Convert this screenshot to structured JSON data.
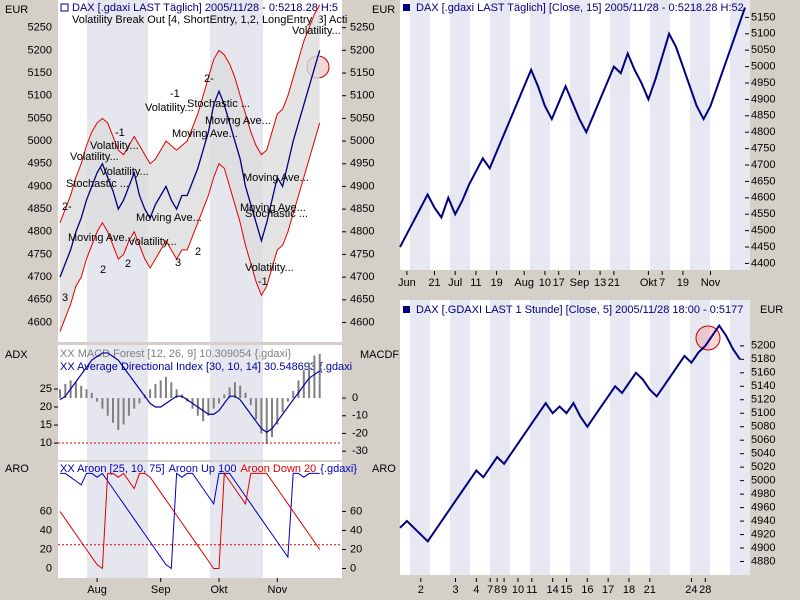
{
  "panels": [
    {
      "type": "band",
      "unit": "EUR",
      "title": "DAX [.gdaxi LAST Täglich] 2005/11/28 - 0:5218.28 H:5",
      "subtitle": "Volatility Break Out [4, ShortEntry, 1,2, LongEntry, 3] Acti",
      "categories": [
        null,
        null,
        null,
        null,
        null,
        null,
        null,
        "Aug",
        null,
        null,
        null,
        null,
        null,
        null,
        null,
        null,
        null,
        null,
        null,
        "Sep",
        null,
        null,
        null,
        null,
        null,
        null,
        null,
        null,
        null,
        null,
        "Okt",
        null,
        null,
        null,
        null,
        null,
        null,
        null,
        null,
        null,
        null,
        "Nov",
        null,
        null,
        null,
        null,
        null,
        null,
        null,
        null
      ],
      "series": [
        {
          "color": "#000080",
          "values": [
            4700,
            4730,
            4760,
            4800,
            4830,
            4870,
            4900,
            4930,
            4950,
            4920,
            4890,
            4850,
            4870,
            4900,
            4930,
            4880,
            4850,
            4830,
            4860,
            4880,
            4900,
            4870,
            4850,
            4880,
            4880,
            4910,
            4940,
            4980,
            5020,
            5080,
            5110,
            5080,
            5040,
            5000,
            4960,
            4900,
            4860,
            4820,
            4780,
            4820,
            4870,
            4920,
            4900,
            4950,
            5000,
            5040,
            5080,
            5120,
            5160,
            5200
          ]
        },
        {
          "color": "#e00000",
          "values": [
            4820,
            4850,
            4880,
            4920,
            4950,
            4990,
            5020,
            5040,
            5050,
            5040,
            5010,
            4980,
            4970,
            4990,
            5010,
            4990,
            4970,
            4950,
            4960,
            4980,
            5000,
            4990,
            4980,
            4990,
            5000,
            5030,
            5060,
            5100,
            5140,
            5180,
            5200,
            5190,
            5170,
            5140,
            5100,
            5060,
            5020,
            4990,
            4970,
            4980,
            5020,
            5060,
            5070,
            5100,
            5140,
            5180,
            5220,
            5250,
            5280,
            5300
          ]
        },
        {
          "color": "#e00000",
          "values": [
            4580,
            4610,
            4640,
            4680,
            4700,
            4740,
            4770,
            4800,
            4820,
            4800,
            4770,
            4740,
            4750,
            4780,
            4800,
            4770,
            4740,
            4720,
            4740,
            4760,
            4780,
            4760,
            4740,
            4760,
            4760,
            4790,
            4820,
            4850,
            4880,
            4920,
            4950,
            4940,
            4900,
            4860,
            4820,
            4770,
            4730,
            4690,
            4660,
            4680,
            4720,
            4760,
            4770,
            4800,
            4840,
            4880,
            4920,
            4960,
            5000,
            5040
          ]
        }
      ],
      "ylim": [
        4557,
        5311
      ],
      "yticks": [
        4600,
        4650,
        4700,
        4750,
        4800,
        4850,
        4900,
        4950,
        5000,
        5050,
        5100,
        5150,
        5200,
        5250
      ],
      "annotations": [
        "Volatility...",
        "Volatility...",
        "-1",
        "Volatility...",
        "-1",
        "2-",
        "Stochastic ...",
        "Moving Ave...",
        "Moving Ave...",
        "Volatility...",
        "-1",
        "Volatility...",
        "Stochastic ...",
        "Moving Ave...",
        "Volatility...",
        "Moving Ave...",
        "Volatility...",
        "2",
        "2",
        "3",
        "2",
        "Stochastic ...",
        "Moving Ave...",
        "Moving Ave...",
        "3",
        "2-"
      ]
    },
    {
      "type": "adx",
      "left_label": "ADX",
      "right_label": "MACDF",
      "title": "XX MACD Forest [12, 26, 9] 10.309054 {.gdaxi}",
      "subtitle": "XX Average Directional Index [30, 10, 14] 30.548693 {.gdaxi",
      "series": [
        {
          "color": "#0000a0",
          "values": [
            22,
            23,
            25,
            27,
            29,
            31,
            33,
            34,
            35,
            35,
            34,
            33,
            31,
            29,
            27,
            25,
            23,
            21,
            20,
            20,
            21,
            22,
            23,
            23,
            22,
            21,
            20,
            19,
            18,
            18,
            19,
            21,
            23,
            23,
            22,
            20,
            18,
            16,
            14,
            13,
            14,
            16,
            18,
            20,
            22,
            24,
            26,
            28,
            29,
            30
          ]
        },
        {
          "color": "#808080",
          "axis": "y2",
          "values": [
            5,
            8,
            10,
            9,
            7,
            5,
            3,
            -2,
            -6,
            -10,
            -14,
            -18,
            -15,
            -10,
            -6,
            -3,
            2,
            5,
            8,
            10,
            12,
            9,
            5,
            2,
            -2,
            -6,
            -10,
            -13,
            -10,
            -6,
            -3,
            2,
            6,
            9,
            7,
            3,
            -4,
            -12,
            -20,
            -26,
            -22,
            -15,
            -8,
            -2,
            4,
            10,
            16,
            20,
            24,
            25
          ]
        }
      ],
      "ylim": [
        5.3,
        37.2
      ],
      "yticks": [
        10,
        15,
        20,
        25
      ],
      "y2lim": [
        -35,
        30
      ],
      "y2ticks": [
        -30,
        -20,
        -10,
        0
      ],
      "levels": [
        10
      ]
    },
    {
      "type": "aroon",
      "label": "ARO",
      "title_parts": [
        {
          "text": "XX Aroon [25, 10, 75]",
          "color": "#0000c0"
        },
        {
          "text": "Aroon Up 100",
          "color": "#0000c0"
        },
        {
          "text": "Aroon Down 20",
          "color": "#e00000"
        },
        {
          "text": "{.gdaxi}",
          "color": "#0000c0"
        }
      ],
      "series": [
        {
          "color": "#0000c0",
          "values": [
            100,
            100,
            96,
            92,
            88,
            100,
            100,
            96,
            100,
            92,
            84,
            76,
            68,
            60,
            52,
            44,
            36,
            28,
            20,
            12,
            4,
            0,
            100,
            96,
            100,
            100,
            92,
            84,
            76,
            68,
            100,
            100,
            100,
            92,
            84,
            76,
            68,
            60,
            52,
            44,
            36,
            28,
            20,
            12,
            100,
            100,
            96,
            100,
            100,
            100
          ]
        },
        {
          "color": "#e00000",
          "values": [
            60,
            52,
            44,
            36,
            28,
            20,
            12,
            4,
            0,
            100,
            100,
            96,
            100,
            92,
            84,
            100,
            100,
            96,
            88,
            80,
            72,
            64,
            56,
            48,
            40,
            32,
            24,
            16,
            8,
            0,
            0,
            100,
            92,
            84,
            76,
            68,
            100,
            100,
            100,
            100,
            92,
            84,
            76,
            68,
            60,
            52,
            44,
            36,
            28,
            20
          ]
        }
      ],
      "ylim": [
        -10,
        112
      ],
      "yticks": [
        0,
        20,
        40,
        60
      ],
      "levels": [
        25
      ]
    },
    {
      "type": "step",
      "unit": "EUR",
      "title": "DAX [.gdaxi LAST Täglich] [Close, 15] 2005/11/28 - 0:5218.28 H:52",
      "categories": [
        null,
        "Jun",
        null,
        null,
        null,
        "21",
        null,
        null,
        "Jul",
        null,
        null,
        "11",
        null,
        null,
        "19",
        null,
        null,
        null,
        "Aug",
        null,
        null,
        "10",
        null,
        "17",
        null,
        null,
        "Sep",
        null,
        null,
        "13",
        null,
        "21",
        null,
        null,
        null,
        null,
        "Okt",
        null,
        "7",
        null,
        null,
        "19",
        null,
        null,
        null,
        "Nov",
        null,
        null,
        null,
        null,
        null
      ],
      "color": "#000080",
      "values": [
        4450,
        4490,
        4530,
        4570,
        4610,
        4570,
        4540,
        4600,
        4550,
        4590,
        4640,
        4680,
        4720,
        4690,
        4740,
        4790,
        4840,
        4890,
        4940,
        4990,
        4940,
        4880,
        4840,
        4890,
        4940,
        4890,
        4840,
        4800,
        4850,
        4900,
        4950,
        5000,
        4980,
        5040,
        4990,
        4950,
        4900,
        4960,
        5030,
        5100,
        5060,
        5000,
        4940,
        4880,
        4840,
        4880,
        4940,
        5000,
        5060,
        5120,
        5180
      ],
      "ylim": [
        4380,
        5203
      ],
      "yticks": [
        4400,
        4450,
        4500,
        4550,
        4600,
        4650,
        4700,
        4750,
        4800,
        4850,
        4900,
        4950,
        5000,
        5050,
        5100,
        5150
      ]
    },
    {
      "type": "step",
      "unit": "EUR",
      "side_label": "ARO",
      "title": "DAX [.GDAXI LAST 1 Stunde] [Close, 5] 2005/11/28 18:00 - 0:5177",
      "categories": [
        null,
        null,
        null,
        "2",
        null,
        null,
        null,
        null,
        "3",
        null,
        null,
        "4",
        null,
        "7",
        "8",
        "9",
        null,
        "10",
        null,
        "11",
        null,
        null,
        "14",
        null,
        "15",
        null,
        null,
        "16",
        null,
        null,
        "17",
        null,
        null,
        "18",
        null,
        null,
        "21",
        null,
        null,
        null,
        null,
        null,
        "24",
        null,
        "28",
        null,
        null,
        null,
        null,
        null
      ],
      "color": "#000080",
      "values": [
        4930,
        4940,
        4930,
        4920,
        4910,
        4925,
        4940,
        4955,
        4970,
        4985,
        5000,
        5015,
        5005,
        5020,
        5035,
        5025,
        5040,
        5055,
        5070,
        5085,
        5100,
        5115,
        5100,
        5110,
        5100,
        5115,
        5095,
        5080,
        5095,
        5110,
        5125,
        5140,
        5130,
        5145,
        5160,
        5150,
        5135,
        5125,
        5140,
        5155,
        5170,
        5185,
        5175,
        5190,
        5200,
        5215,
        5230,
        5215,
        5195,
        5180
      ],
      "ylim": [
        4860,
        5268
      ],
      "yticks": [
        4880,
        4900,
        4920,
        4940,
        4960,
        4980,
        5000,
        5020,
        5040,
        5060,
        5080,
        5100,
        5120,
        5140,
        5160,
        5180,
        5200
      ]
    }
  ]
}
